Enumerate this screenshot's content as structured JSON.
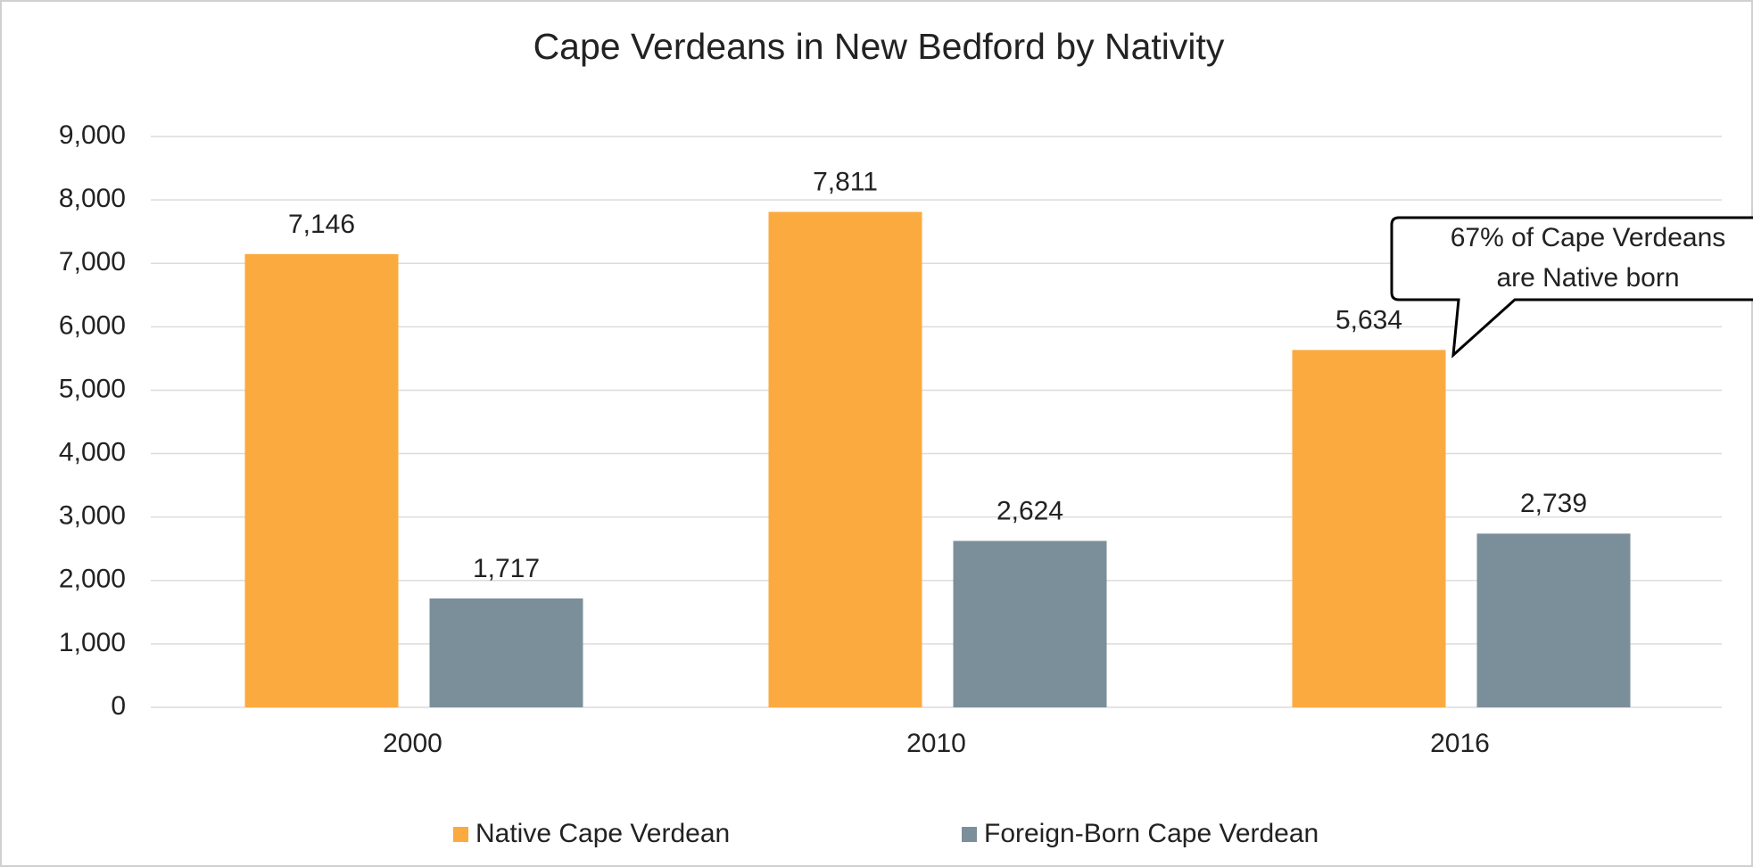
{
  "chart_data": {
    "type": "bar",
    "title": "Cape Verdeans in New Bedford by Nativity",
    "categories": [
      "2000",
      "2010",
      "2016"
    ],
    "series": [
      {
        "name": "Native Cape Verdean",
        "color": "#fbaa40",
        "values": [
          7146,
          7811,
          5634
        ],
        "value_labels": [
          "7,146",
          "7,811",
          "5,634"
        ]
      },
      {
        "name": "Foreign-Born Cape Verdean",
        "color": "#7b8f9a",
        "values": [
          1717,
          2624,
          2739
        ],
        "value_labels": [
          "1,717",
          "2,624",
          "2,739"
        ]
      }
    ],
    "ylim": [
      0,
      9000
    ],
    "yticks": [
      0,
      {
        "value": 1000,
        "label": "1,000"
      },
      {
        "value": 2000,
        "label": "2,000"
      },
      {
        "value": 3000,
        "label": "3,000"
      },
      {
        "value": 4000,
        "label": "4,000"
      },
      {
        "value": 5000,
        "label": "5,000"
      },
      {
        "value": 6000,
        "label": "6,000"
      },
      {
        "value": 7000,
        "label": "7,000"
      },
      {
        "value": 8000,
        "label": "8,000"
      },
      {
        "value": 9000,
        "label": "9,000"
      }
    ],
    "grid": true,
    "legend": "bottom",
    "annotation": [
      "67% of Cape Verdeans",
      "are Native born"
    ]
  }
}
